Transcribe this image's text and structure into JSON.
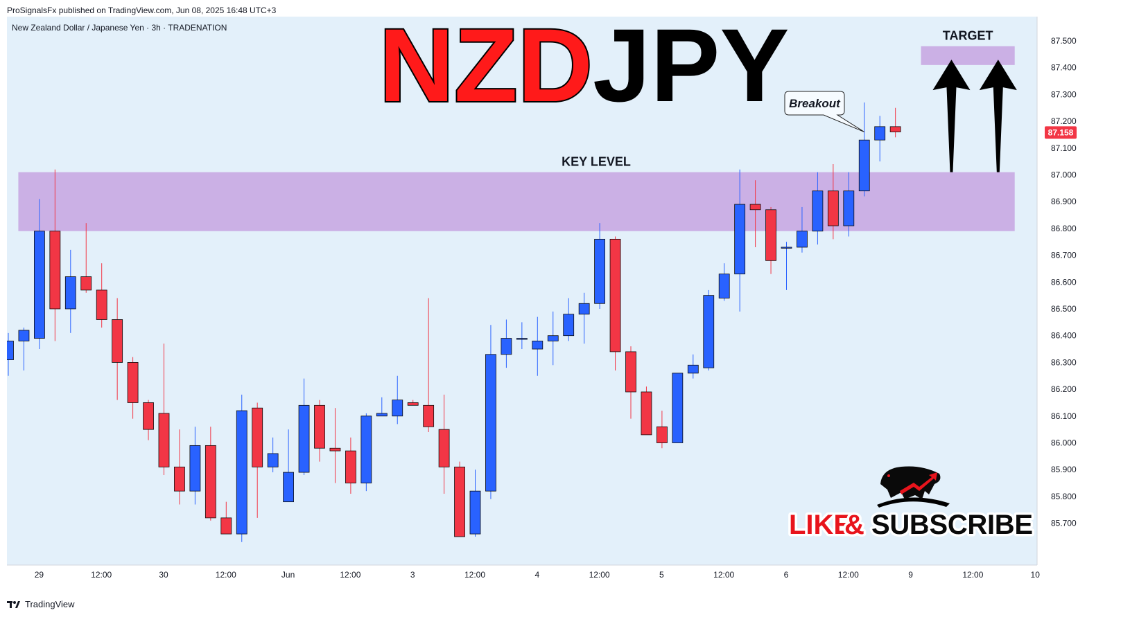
{
  "header": {
    "publisher_line": "ProSignalsFx published on TradingView.com, Jun 08, 2025 16:48 UTC+3"
  },
  "footer": {
    "brand": "TradingView",
    "brand_icon": "tradingview-logo-icon"
  },
  "colors": {
    "background": "#e3f0fa",
    "bull": "#2962ff",
    "bear": "#f23645",
    "zone": "#c8a8e2",
    "title_red": "#ff1a1a",
    "title_black": "#000000",
    "price_tag": "#f23645"
  },
  "chart_data": {
    "type": "candlestick",
    "symbol_line": "New Zealand Dollar / Japanese Yen · 3h · TRADENATION",
    "title_part1": "NZD",
    "title_part2": "JPY",
    "ylim": [
      85.63,
      87.56
    ],
    "y_ticks": [
      87.5,
      87.4,
      87.3,
      87.2,
      87.1,
      87.0,
      86.9,
      86.8,
      86.7,
      86.6,
      86.5,
      86.4,
      86.3,
      86.2,
      86.1,
      86.0,
      85.9,
      85.8,
      85.7
    ],
    "y_tick_labels": [
      "87.500",
      "87.400",
      "87.300",
      "87.200",
      "87.100",
      "87.000",
      "86.900",
      "86.800",
      "86.700",
      "86.600",
      "86.500",
      "86.400",
      "86.300",
      "86.200",
      "86.100",
      "86.000",
      "85.900",
      "85.800",
      "85.700"
    ],
    "x_tick_labels": [
      {
        "i": 2,
        "label": "29"
      },
      {
        "i": 6,
        "label": "12:00"
      },
      {
        "i": 10,
        "label": "30"
      },
      {
        "i": 14,
        "label": "12:00"
      },
      {
        "i": 18,
        "label": "Jun"
      },
      {
        "i": 22,
        "label": "12:00"
      },
      {
        "i": 26,
        "label": "3"
      },
      {
        "i": 30,
        "label": "12:00"
      },
      {
        "i": 34,
        "label": "4"
      },
      {
        "i": 38,
        "label": "12:00"
      },
      {
        "i": 42,
        "label": "5"
      },
      {
        "i": 46,
        "label": "12:00"
      },
      {
        "i": 50,
        "label": "6"
      },
      {
        "i": 54,
        "label": "12:00"
      },
      {
        "i": 58,
        "label": "9"
      },
      {
        "i": 62,
        "label": "12:00"
      },
      {
        "i": 66,
        "label": "10"
      }
    ],
    "candles": [
      {
        "o": 86.31,
        "h": 86.41,
        "l": 86.25,
        "c": 86.38
      },
      {
        "o": 86.38,
        "h": 86.43,
        "l": 86.27,
        "c": 86.42
      },
      {
        "o": 86.39,
        "h": 86.91,
        "l": 86.35,
        "c": 86.79
      },
      {
        "o": 86.79,
        "h": 87.02,
        "l": 86.38,
        "c": 86.5
      },
      {
        "o": 86.5,
        "h": 86.72,
        "l": 86.41,
        "c": 86.62
      },
      {
        "o": 86.62,
        "h": 86.82,
        "l": 86.56,
        "c": 86.57
      },
      {
        "o": 86.57,
        "h": 86.67,
        "l": 86.43,
        "c": 86.46
      },
      {
        "o": 86.46,
        "h": 86.54,
        "l": 86.16,
        "c": 86.3
      },
      {
        "o": 86.3,
        "h": 86.32,
        "l": 86.09,
        "c": 86.15
      },
      {
        "o": 86.15,
        "h": 86.16,
        "l": 86.01,
        "c": 86.05
      },
      {
        "o": 86.11,
        "h": 86.37,
        "l": 85.88,
        "c": 85.91
      },
      {
        "o": 85.91,
        "h": 86.05,
        "l": 85.77,
        "c": 85.82
      },
      {
        "o": 85.82,
        "h": 86.06,
        "l": 85.77,
        "c": 85.99
      },
      {
        "o": 85.99,
        "h": 86.06,
        "l": 85.71,
        "c": 85.72
      },
      {
        "o": 85.72,
        "h": 85.78,
        "l": 85.67,
        "c": 85.66
      },
      {
        "o": 85.66,
        "h": 86.18,
        "l": 85.63,
        "c": 86.12
      },
      {
        "o": 86.13,
        "h": 86.15,
        "l": 85.72,
        "c": 85.91
      },
      {
        "o": 85.91,
        "h": 86.02,
        "l": 85.89,
        "c": 85.96
      },
      {
        "o": 85.78,
        "h": 86.05,
        "l": 85.78,
        "c": 85.89
      },
      {
        "o": 85.89,
        "h": 86.24,
        "l": 85.88,
        "c": 86.14
      },
      {
        "o": 86.14,
        "h": 86.16,
        "l": 85.93,
        "c": 85.98
      },
      {
        "o": 85.98,
        "h": 86.13,
        "l": 85.85,
        "c": 85.97
      },
      {
        "o": 85.97,
        "h": 86.02,
        "l": 85.81,
        "c": 85.85
      },
      {
        "o": 85.85,
        "h": 86.11,
        "l": 85.82,
        "c": 86.1
      },
      {
        "o": 86.1,
        "h": 86.17,
        "l": 86.1,
        "c": 86.11
      },
      {
        "o": 86.1,
        "h": 86.25,
        "l": 86.07,
        "c": 86.16
      },
      {
        "o": 86.15,
        "h": 86.16,
        "l": 86.14,
        "c": 86.14
      },
      {
        "o": 86.14,
        "h": 86.54,
        "l": 86.04,
        "c": 86.06
      },
      {
        "o": 86.05,
        "h": 86.18,
        "l": 85.81,
        "c": 85.91
      },
      {
        "o": 85.91,
        "h": 85.93,
        "l": 85.65,
        "c": 85.65
      },
      {
        "o": 85.66,
        "h": 85.9,
        "l": 85.65,
        "c": 85.82
      },
      {
        "o": 85.82,
        "h": 86.44,
        "l": 85.79,
        "c": 86.33
      },
      {
        "o": 86.33,
        "h": 86.46,
        "l": 86.28,
        "c": 86.39
      },
      {
        "o": 86.39,
        "h": 86.45,
        "l": 86.35,
        "c": 86.39
      },
      {
        "o": 86.35,
        "h": 86.47,
        "l": 86.25,
        "c": 86.38
      },
      {
        "o": 86.38,
        "h": 86.49,
        "l": 86.29,
        "c": 86.4
      },
      {
        "o": 86.4,
        "h": 86.54,
        "l": 86.38,
        "c": 86.48
      },
      {
        "o": 86.48,
        "h": 86.56,
        "l": 86.37,
        "c": 86.52
      },
      {
        "o": 86.52,
        "h": 86.82,
        "l": 86.5,
        "c": 86.76
      },
      {
        "o": 86.76,
        "h": 86.77,
        "l": 86.27,
        "c": 86.34
      },
      {
        "o": 86.34,
        "h": 86.36,
        "l": 86.09,
        "c": 86.19
      },
      {
        "o": 86.19,
        "h": 86.21,
        "l": 86.03,
        "c": 86.03
      },
      {
        "o": 86.06,
        "h": 86.12,
        "l": 85.98,
        "c": 86.0
      },
      {
        "o": 86.0,
        "h": 86.26,
        "l": 86.0,
        "c": 86.26
      },
      {
        "o": 86.26,
        "h": 86.33,
        "l": 86.24,
        "c": 86.29
      },
      {
        "o": 86.28,
        "h": 86.57,
        "l": 86.27,
        "c": 86.55
      },
      {
        "o": 86.54,
        "h": 86.67,
        "l": 86.53,
        "c": 86.63
      },
      {
        "o": 86.63,
        "h": 87.02,
        "l": 86.49,
        "c": 86.89
      },
      {
        "o": 86.89,
        "h": 86.98,
        "l": 86.73,
        "c": 86.87
      },
      {
        "o": 86.87,
        "h": 86.88,
        "l": 86.63,
        "c": 86.68
      },
      {
        "o": 86.73,
        "h": 86.75,
        "l": 86.57,
        "c": 86.73
      },
      {
        "o": 86.73,
        "h": 86.88,
        "l": 86.71,
        "c": 86.79
      },
      {
        "o": 86.79,
        "h": 87.01,
        "l": 86.74,
        "c": 86.94
      },
      {
        "o": 86.94,
        "h": 87.04,
        "l": 86.76,
        "c": 86.81
      },
      {
        "o": 86.81,
        "h": 87.01,
        "l": 86.77,
        "c": 86.94
      },
      {
        "o": 86.94,
        "h": 87.27,
        "l": 86.92,
        "c": 87.13
      },
      {
        "o": 87.13,
        "h": 87.22,
        "l": 87.05,
        "c": 87.18
      },
      {
        "o": 87.18,
        "h": 87.25,
        "l": 87.14,
        "c": 87.16
      }
    ],
    "last_price_label": "87.158",
    "last_price": 87.158,
    "zones": [
      {
        "name": "key-level",
        "label": "KEY LEVEL",
        "from": 86.79,
        "to": 87.01,
        "i_start": 1,
        "i_end": 66
      },
      {
        "name": "target",
        "label": "TARGET",
        "from": 87.41,
        "to": 87.48,
        "i_start": 59,
        "i_end": 66
      }
    ],
    "callout": {
      "label": "Breakout",
      "anchor_i": 55,
      "anchor_price": 87.16
    },
    "arrows": [
      {
        "name": "target-arrow-1",
        "i": 60.6,
        "from": 87.01,
        "to": 87.43
      },
      {
        "name": "target-arrow-2",
        "i": 63.6,
        "from": 87.01,
        "to": 87.43
      }
    ],
    "grid": false
  },
  "promo": {
    "like": "LIKE",
    "amp": "&",
    "subscribe": "SUBSCRIBE",
    "logo_icon": "bull-bear-logo-icon"
  }
}
